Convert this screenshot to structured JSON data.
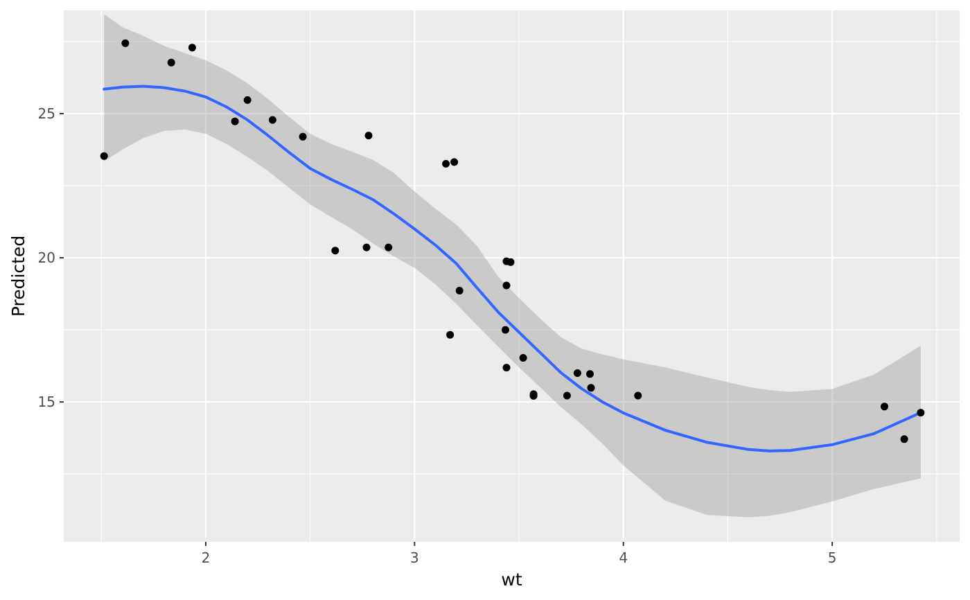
{
  "chart_data": {
    "type": "scatter",
    "xlabel": "wt",
    "ylabel": "Predicted",
    "xlim": [
      1.32,
      5.61
    ],
    "ylim": [
      10.15,
      28.58
    ],
    "x_ticks": [
      2,
      3,
      4,
      5
    ],
    "x_tick_labels": [
      "2",
      "3",
      "4",
      "5"
    ],
    "y_ticks": [
      15,
      20,
      25
    ],
    "y_tick_labels": [
      "15",
      "20",
      "25"
    ],
    "x_minor_ticks": [
      1.5,
      2.5,
      3.5,
      4.5,
      5.5
    ],
    "y_minor_ticks": [
      12.5,
      17.5,
      22.5,
      27.5
    ],
    "grid": true,
    "legend": "none",
    "colors": {
      "panel_background": "#ebebeb",
      "grid": "#ffffff",
      "points": "#000000",
      "smooth_line": "#3366ff",
      "confidence_band": "#999999"
    },
    "points": [
      {
        "x": 1.513,
        "y": 23.53
      },
      {
        "x": 1.615,
        "y": 27.44
      },
      {
        "x": 1.835,
        "y": 26.77
      },
      {
        "x": 1.935,
        "y": 27.29
      },
      {
        "x": 2.14,
        "y": 24.73
      },
      {
        "x": 2.2,
        "y": 25.47
      },
      {
        "x": 2.32,
        "y": 24.78
      },
      {
        "x": 2.465,
        "y": 24.2
      },
      {
        "x": 2.62,
        "y": 20.25
      },
      {
        "x": 2.77,
        "y": 20.36
      },
      {
        "x": 2.78,
        "y": 24.24
      },
      {
        "x": 2.875,
        "y": 20.36
      },
      {
        "x": 3.15,
        "y": 23.26
      },
      {
        "x": 3.17,
        "y": 17.33
      },
      {
        "x": 3.19,
        "y": 23.32
      },
      {
        "x": 3.215,
        "y": 18.86
      },
      {
        "x": 3.435,
        "y": 17.5
      },
      {
        "x": 3.44,
        "y": 19.88
      },
      {
        "x": 3.44,
        "y": 16.19
      },
      {
        "x": 3.44,
        "y": 19.04
      },
      {
        "x": 3.46,
        "y": 19.85
      },
      {
        "x": 3.52,
        "y": 16.53
      },
      {
        "x": 3.57,
        "y": 15.27
      },
      {
        "x": 3.57,
        "y": 15.21
      },
      {
        "x": 3.73,
        "y": 15.22
      },
      {
        "x": 3.78,
        "y": 16.0
      },
      {
        "x": 3.84,
        "y": 15.97
      },
      {
        "x": 3.845,
        "y": 15.49
      },
      {
        "x": 4.07,
        "y": 15.22
      },
      {
        "x": 5.25,
        "y": 14.84
      },
      {
        "x": 5.345,
        "y": 13.71
      },
      {
        "x": 5.424,
        "y": 14.63
      }
    ],
    "smooth": {
      "method": "loess",
      "x": [
        1.513,
        1.6,
        1.7,
        1.8,
        1.9,
        2.0,
        2.1,
        2.2,
        2.3,
        2.4,
        2.5,
        2.6,
        2.7,
        2.8,
        2.9,
        3.0,
        3.1,
        3.2,
        3.3,
        3.4,
        3.5,
        3.6,
        3.7,
        3.8,
        3.9,
        4.0,
        4.2,
        4.4,
        4.6,
        4.7,
        4.8,
        5.0,
        5.2,
        5.424
      ],
      "y": [
        25.85,
        25.92,
        25.95,
        25.9,
        25.78,
        25.58,
        25.23,
        24.78,
        24.23,
        23.65,
        23.1,
        22.72,
        22.38,
        22.02,
        21.53,
        21.0,
        20.44,
        19.8,
        18.95,
        18.12,
        17.42,
        16.72,
        16.02,
        15.46,
        15.0,
        14.62,
        14.02,
        13.6,
        13.35,
        13.3,
        13.32,
        13.52,
        13.9,
        14.63
      ],
      "lower": [
        23.35,
        23.75,
        24.15,
        24.4,
        24.45,
        24.3,
        23.95,
        23.5,
        23.0,
        22.42,
        21.85,
        21.42,
        21.0,
        20.5,
        20.05,
        19.65,
        19.08,
        18.4,
        17.65,
        16.92,
        16.2,
        15.52,
        14.83,
        14.22,
        13.55,
        12.8,
        11.58,
        11.08,
        11.0,
        11.05,
        11.18,
        11.55,
        11.98,
        12.35
      ],
      "upper": [
        28.45,
        28.0,
        27.7,
        27.35,
        27.1,
        26.85,
        26.5,
        26.05,
        25.5,
        24.88,
        24.3,
        23.95,
        23.68,
        23.4,
        22.95,
        22.3,
        21.7,
        21.15,
        20.4,
        19.35,
        18.6,
        17.9,
        17.25,
        16.85,
        16.65,
        16.48,
        16.2,
        15.85,
        15.52,
        15.41,
        15.35,
        15.45,
        15.95,
        16.95
      ]
    }
  }
}
